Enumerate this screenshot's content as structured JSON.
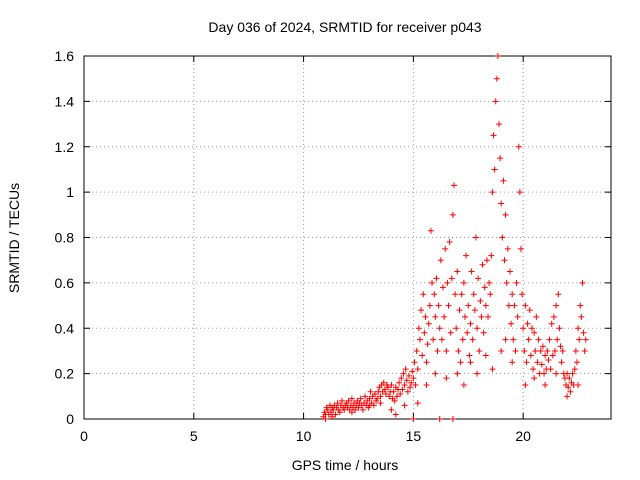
{
  "chart_data": {
    "type": "scatter",
    "title": "Day 036 of 2024, SRMTID for receiver p043",
    "xlabel": "GPS time / hours",
    "ylabel": "SRMTID / TECUs",
    "xlim": [
      0,
      24
    ],
    "ylim": [
      0,
      1.6
    ],
    "xticks": [
      0,
      5,
      10,
      15,
      20
    ],
    "xtick_labels": [
      "0",
      "5",
      "10",
      "15",
      "20"
    ],
    "yticks": [
      0,
      0.2,
      0.4,
      0.6,
      0.8,
      1.0,
      1.2,
      1.4,
      1.6
    ],
    "ytick_labels": [
      "0",
      "0.2",
      "0.4",
      "0.6",
      "0.8",
      "1",
      "1.2",
      "1.4",
      "1.6"
    ],
    "grid": true,
    "marker": "+",
    "color": "#ff0000",
    "series": [
      {
        "name": "p043",
        "points": [
          [
            10.9,
            0.01
          ],
          [
            10.95,
            0.03
          ],
          [
            11.0,
            0.02
          ],
          [
            11.05,
            0.05
          ],
          [
            11.1,
            0.04
          ],
          [
            11.15,
            0.02
          ],
          [
            11.2,
            0.06
          ],
          [
            11.25,
            0.03
          ],
          [
            11.3,
            0.05
          ],
          [
            11.35,
            0.04
          ],
          [
            11.4,
            0.06
          ],
          [
            11.45,
            0.02
          ],
          [
            11.5,
            0.05
          ],
          [
            11.55,
            0.07
          ],
          [
            11.6,
            0.04
          ],
          [
            11.65,
            0.03
          ],
          [
            11.7,
            0.06
          ],
          [
            11.75,
            0.08
          ],
          [
            11.8,
            0.05
          ],
          [
            11.85,
            0.04
          ],
          [
            11.9,
            0.06
          ],
          [
            11.95,
            0.07
          ],
          [
            12.0,
            0.05
          ],
          [
            12.05,
            0.08
          ],
          [
            12.1,
            0.04
          ],
          [
            12.15,
            0.06
          ],
          [
            12.2,
            0.09
          ],
          [
            12.25,
            0.05
          ],
          [
            12.3,
            0.07
          ],
          [
            12.35,
            0.04
          ],
          [
            12.4,
            0.06
          ],
          [
            12.45,
            0.08
          ],
          [
            12.5,
            0.05
          ],
          [
            12.55,
            0.07
          ],
          [
            12.6,
            0.09
          ],
          [
            12.65,
            0.06
          ],
          [
            12.7,
            0.04
          ],
          [
            12.75,
            0.07
          ],
          [
            12.8,
            0.1
          ],
          [
            12.85,
            0.06
          ],
          [
            12.9,
            0.08
          ],
          [
            12.95,
            0.05
          ],
          [
            13.0,
            0.09
          ],
          [
            13.05,
            0.12
          ],
          [
            13.1,
            0.07
          ],
          [
            13.15,
            0.1
          ],
          [
            13.2,
            0.06
          ],
          [
            13.25,
            0.11
          ],
          [
            13.3,
            0.08
          ],
          [
            13.35,
            0.09
          ],
          [
            13.4,
            0.12
          ],
          [
            13.45,
            0.14
          ],
          [
            13.5,
            0.1
          ],
          [
            13.55,
            0.15
          ],
          [
            13.6,
            0.12
          ],
          [
            13.65,
            0.16
          ],
          [
            13.7,
            0.13
          ],
          [
            13.75,
            0.11
          ],
          [
            13.8,
            0.15
          ],
          [
            13.85,
            0.14
          ],
          [
            13.9,
            0.1
          ],
          [
            13.95,
            0.12
          ],
          [
            14.0,
            0.15
          ],
          [
            14.05,
            0.09
          ],
          [
            14.1,
            0.12
          ],
          [
            14.15,
            0.08
          ],
          [
            14.2,
            0.14
          ],
          [
            14.25,
            0.1
          ],
          [
            14.3,
            0.13
          ],
          [
            14.35,
            0.16
          ],
          [
            14.4,
            0.11
          ],
          [
            14.45,
            0.18
          ],
          [
            14.5,
            0.13
          ],
          [
            14.55,
            0.2
          ],
          [
            14.6,
            0.15
          ],
          [
            14.65,
            0.22
          ],
          [
            14.7,
            0.17
          ],
          [
            14.75,
            0.12
          ],
          [
            14.8,
            0.19
          ],
          [
            14.85,
            0.14
          ],
          [
            14.9,
            0.16
          ],
          [
            14.95,
            0.21
          ],
          [
            15.0,
            0.18
          ],
          [
            15.05,
            0.25
          ],
          [
            15.1,
            0.15
          ],
          [
            15.15,
            0.3
          ],
          [
            15.2,
            0.22
          ],
          [
            15.25,
            0.4
          ],
          [
            15.3,
            0.35
          ],
          [
            15.35,
            0.48
          ],
          [
            15.4,
            0.28
          ],
          [
            15.45,
            0.55
          ],
          [
            15.5,
            0.38
          ],
          [
            15.55,
            0.45
          ],
          [
            15.6,
            0.25
          ],
          [
            15.65,
            0.33
          ],
          [
            15.7,
            0.42
          ],
          [
            15.75,
            0.5
          ],
          [
            15.8,
            0.83
          ],
          [
            15.85,
            0.6
          ],
          [
            15.9,
            0.35
          ],
          [
            15.95,
            0.55
          ],
          [
            16.0,
            0.45
          ],
          [
            16.05,
            0.62
          ],
          [
            16.1,
            0.3
          ],
          [
            16.15,
            0.5
          ],
          [
            16.2,
            0.4
          ],
          [
            16.25,
            0.7
          ],
          [
            16.3,
            0.35
          ],
          [
            16.35,
            0.58
          ],
          [
            16.4,
            0.45
          ],
          [
            16.45,
            0.75
          ],
          [
            16.5,
            0.3
          ],
          [
            16.55,
            0.6
          ],
          [
            16.6,
            0.5
          ],
          [
            16.65,
            0.78
          ],
          [
            16.7,
            0.38
          ],
          [
            16.75,
            0.62
          ],
          [
            16.8,
            0.9
          ],
          [
            16.85,
            1.03
          ],
          [
            16.9,
            0.55
          ],
          [
            16.95,
            0.4
          ],
          [
            17.0,
            0.65
          ],
          [
            17.05,
            0.3
          ],
          [
            17.1,
            0.48
          ],
          [
            17.15,
            0.25
          ],
          [
            17.2,
            0.55
          ],
          [
            17.25,
            0.35
          ],
          [
            17.3,
            0.6
          ],
          [
            17.35,
            0.45
          ],
          [
            17.4,
            0.72
          ],
          [
            17.45,
            0.38
          ],
          [
            17.5,
            0.5
          ],
          [
            17.55,
            0.28
          ],
          [
            17.6,
            0.42
          ],
          [
            17.65,
            0.65
          ],
          [
            17.7,
            0.35
          ],
          [
            17.75,
            0.55
          ],
          [
            17.8,
            0.48
          ],
          [
            17.85,
            0.8
          ],
          [
            17.9,
            0.4
          ],
          [
            17.95,
            0.62
          ],
          [
            18.0,
            0.3
          ],
          [
            18.05,
            0.52
          ],
          [
            18.1,
            0.45
          ],
          [
            18.15,
            0.68
          ],
          [
            18.2,
            0.38
          ],
          [
            18.25,
            0.58
          ],
          [
            18.3,
            0.5
          ],
          [
            18.35,
            0.7
          ],
          [
            18.4,
            0.45
          ],
          [
            18.45,
            0.6
          ],
          [
            18.5,
            0.55
          ],
          [
            18.55,
            0.72
          ],
          [
            18.6,
            1.0
          ],
          [
            18.65,
            1.25
          ],
          [
            18.7,
            1.1
          ],
          [
            18.75,
            1.4
          ],
          [
            18.8,
            1.5
          ],
          [
            18.85,
            1.6
          ],
          [
            18.9,
            1.3
          ],
          [
            18.95,
            1.15
          ],
          [
            19.0,
            0.95
          ],
          [
            19.05,
            0.8
          ],
          [
            19.1,
            1.05
          ],
          [
            19.15,
            0.7
          ],
          [
            19.2,
            0.9
          ],
          [
            19.25,
            0.6
          ],
          [
            19.3,
            0.75
          ],
          [
            19.35,
            0.5
          ],
          [
            19.4,
            0.65
          ],
          [
            19.45,
            0.42
          ],
          [
            19.5,
            0.55
          ],
          [
            19.55,
            0.35
          ],
          [
            19.6,
            0.5
          ],
          [
            19.65,
            0.3
          ],
          [
            19.7,
            0.6
          ],
          [
            19.75,
            0.45
          ],
          [
            19.8,
            1.2
          ],
          [
            19.85,
            1.0
          ],
          [
            19.9,
            0.75
          ],
          [
            19.95,
            0.55
          ],
          [
            20.0,
            0.4
          ],
          [
            20.05,
            0.3
          ],
          [
            20.1,
            0.5
          ],
          [
            20.15,
            0.25
          ],
          [
            20.2,
            0.42
          ],
          [
            20.25,
            0.35
          ],
          [
            20.3,
            0.48
          ],
          [
            20.35,
            0.28
          ],
          [
            20.4,
            0.4
          ],
          [
            20.45,
            0.22
          ],
          [
            20.5,
            0.38
          ],
          [
            20.55,
            0.3
          ],
          [
            20.6,
            0.45
          ],
          [
            20.65,
            0.25
          ],
          [
            20.7,
            0.35
          ],
          [
            20.75,
            0.2
          ],
          [
            20.8,
            0.3
          ],
          [
            20.85,
            0.24
          ],
          [
            20.9,
            0.32
          ],
          [
            20.95,
            0.2
          ],
          [
            21.0,
            0.28
          ],
          [
            21.05,
            0.22
          ],
          [
            21.1,
            0.3
          ],
          [
            21.15,
            0.26
          ],
          [
            21.2,
            0.35
          ],
          [
            21.25,
            0.22
          ],
          [
            21.3,
            0.42
          ],
          [
            21.35,
            0.28
          ],
          [
            21.4,
            0.45
          ],
          [
            21.45,
            0.3
          ],
          [
            21.5,
            0.5
          ],
          [
            21.55,
            0.35
          ],
          [
            21.6,
            0.55
          ],
          [
            21.65,
            0.4
          ],
          [
            21.7,
            0.32
          ],
          [
            21.75,
            0.25
          ],
          [
            21.8,
            0.3
          ],
          [
            21.85,
            0.2
          ],
          [
            21.9,
            0.18
          ],
          [
            21.95,
            0.15
          ],
          [
            22.0,
            0.2
          ],
          [
            22.05,
            0.14
          ],
          [
            22.1,
            0.18
          ],
          [
            22.15,
            0.12
          ],
          [
            22.2,
            0.16
          ],
          [
            22.25,
            0.2
          ],
          [
            22.3,
            0.15
          ],
          [
            22.35,
            0.22
          ],
          [
            22.4,
            0.3
          ],
          [
            22.45,
            0.25
          ],
          [
            22.5,
            0.4
          ],
          [
            22.55,
            0.35
          ],
          [
            22.6,
            0.5
          ],
          [
            22.65,
            0.45
          ],
          [
            22.7,
            0.6
          ],
          [
            22.75,
            0.38
          ],
          [
            22.8,
            0.3
          ],
          [
            22.85,
            0.35
          ],
          [
            11.0,
            0.0
          ],
          [
            11.3,
            0.01
          ],
          [
            12.2,
            0.03
          ],
          [
            13.0,
            0.06
          ],
          [
            13.5,
            0.07
          ],
          [
            14.0,
            0.04
          ],
          [
            14.2,
            0.02
          ],
          [
            14.6,
            0.06
          ],
          [
            15.0,
            0.0
          ],
          [
            15.2,
            0.07
          ],
          [
            15.6,
            0.15
          ],
          [
            16.0,
            0.2
          ],
          [
            16.2,
            0.0
          ],
          [
            16.5,
            0.18
          ],
          [
            16.8,
            0.0
          ],
          [
            17.0,
            0.2
          ],
          [
            17.3,
            0.15
          ],
          [
            17.6,
            0.25
          ],
          [
            17.9,
            0.2
          ],
          [
            18.3,
            0.28
          ],
          [
            18.6,
            0.22
          ],
          [
            19.0,
            0.3
          ],
          [
            19.2,
            0.35
          ],
          [
            19.5,
            0.25
          ],
          [
            20.1,
            0.15
          ],
          [
            20.5,
            0.18
          ],
          [
            21.0,
            0.15
          ],
          [
            21.5,
            0.2
          ],
          [
            22.0,
            0.1
          ],
          [
            22.5,
            0.15
          ]
        ]
      }
    ]
  }
}
